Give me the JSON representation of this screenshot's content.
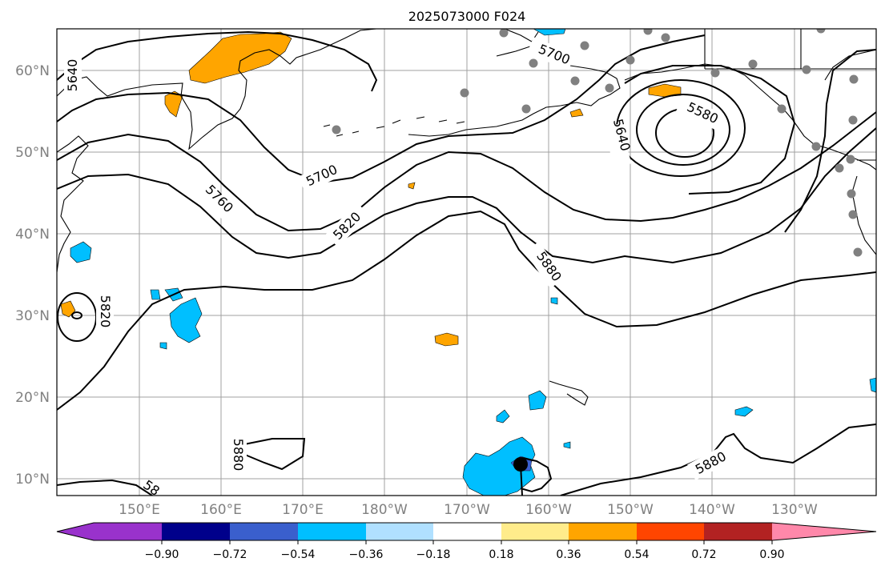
{
  "title": "2025073000 F024",
  "lat_labels": [
    "60°N",
    "50°N",
    "40°N",
    "30°N",
    "20°N",
    "10°N"
  ],
  "lon_labels": [
    "150°E",
    "160°E",
    "170°E",
    "180°W",
    "170°W",
    "160°W",
    "150°W",
    "140°W",
    "130°W"
  ],
  "contour_labels": [
    "5640",
    "5700",
    "5760",
    "5820",
    "5880",
    "5580",
    "5640",
    "5820",
    "5880",
    "5880",
    "58"
  ],
  "colorbar": {
    "ticks": [
      "−0.90",
      "−0.72",
      "−0.54",
      "−0.36",
      "−0.18",
      "0.18",
      "0.36",
      "0.54",
      "0.72",
      "0.90"
    ],
    "colors": [
      "#9932cc",
      "#00008b",
      "#3a5fcd",
      "#00bfff",
      "#b0e0ff",
      "#ffffff",
      "#ffec8b",
      "#ffa500",
      "#ff4500",
      "#b22222",
      "#ff88aa"
    ]
  },
  "colors": {
    "positive_anomaly": "#ffa500",
    "negative_anomaly": "#00bfff",
    "station": "#808080"
  }
}
